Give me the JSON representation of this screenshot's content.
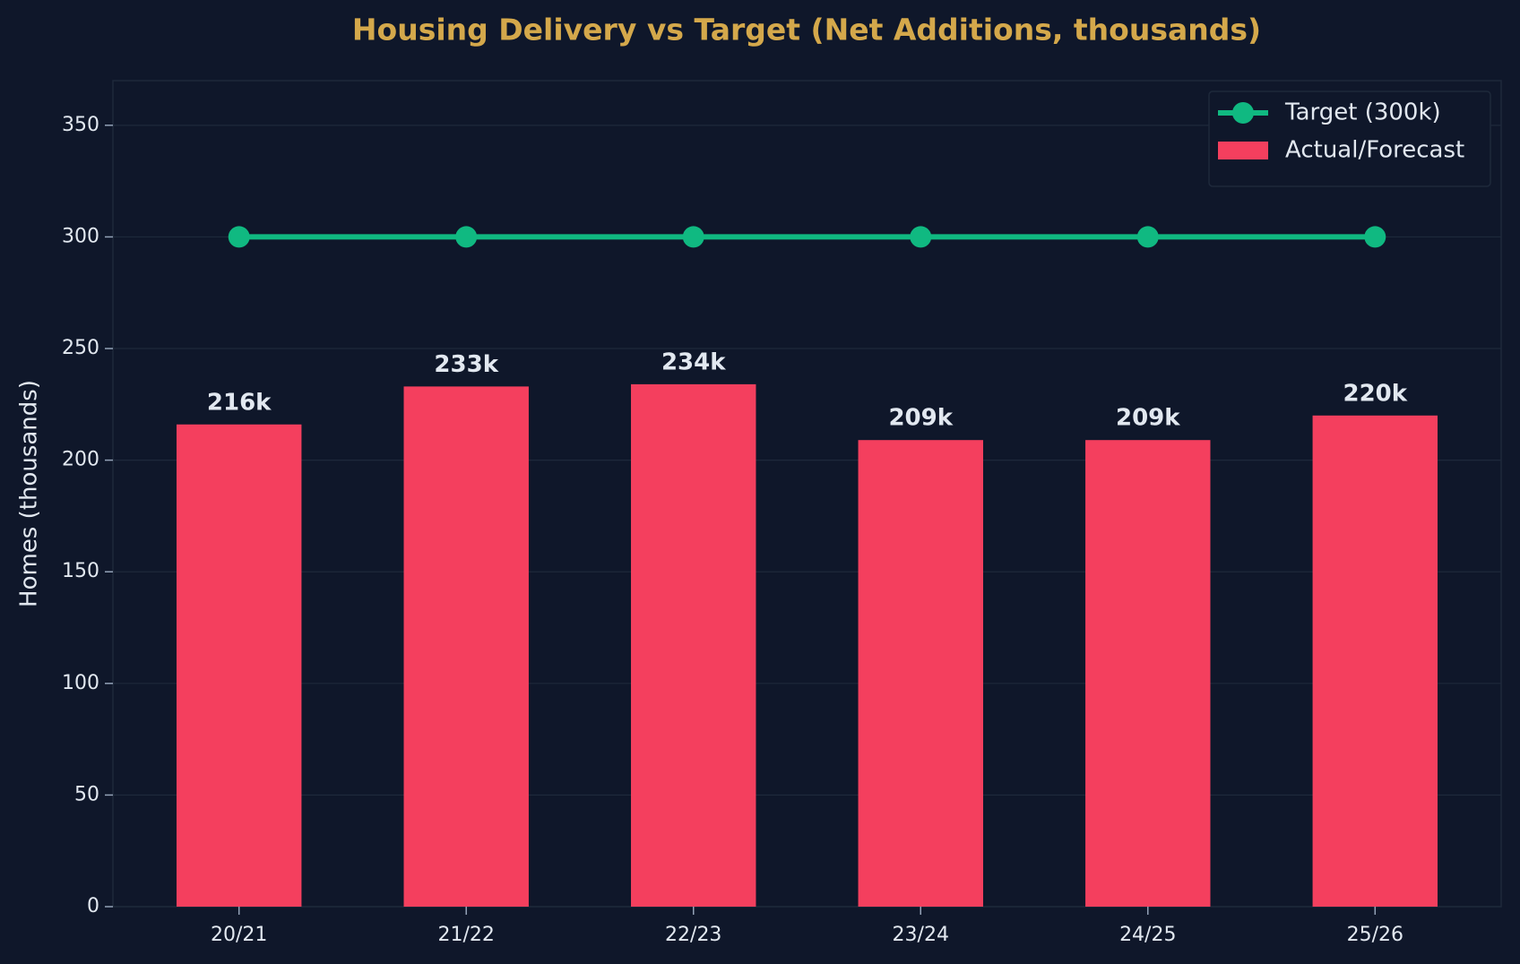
{
  "chart_data": {
    "type": "bar",
    "title": "Housing Delivery vs Target (Net Additions, thousands)",
    "y_label": "Homes (thousands)",
    "categories": [
      "20/21",
      "21/22",
      "22/23",
      "23/24",
      "24/25",
      "25/26"
    ],
    "series": [
      {
        "name": "Target (300k)",
        "type": "line",
        "color": "#10b981",
        "values": [
          300,
          300,
          300,
          300,
          300,
          300
        ]
      },
      {
        "name": "Actual/Forecast",
        "type": "bar",
        "color": "#f43f5e",
        "values": [
          216,
          233,
          234,
          209,
          209,
          220
        ],
        "value_labels": [
          "216k",
          "233k",
          "234k",
          "209k",
          "209k",
          "220k"
        ]
      }
    ],
    "ylim": [
      0,
      370
    ],
    "yticks": [
      0,
      50,
      100,
      150,
      200,
      250,
      300,
      350
    ],
    "grid": true,
    "legend": "upper right"
  }
}
